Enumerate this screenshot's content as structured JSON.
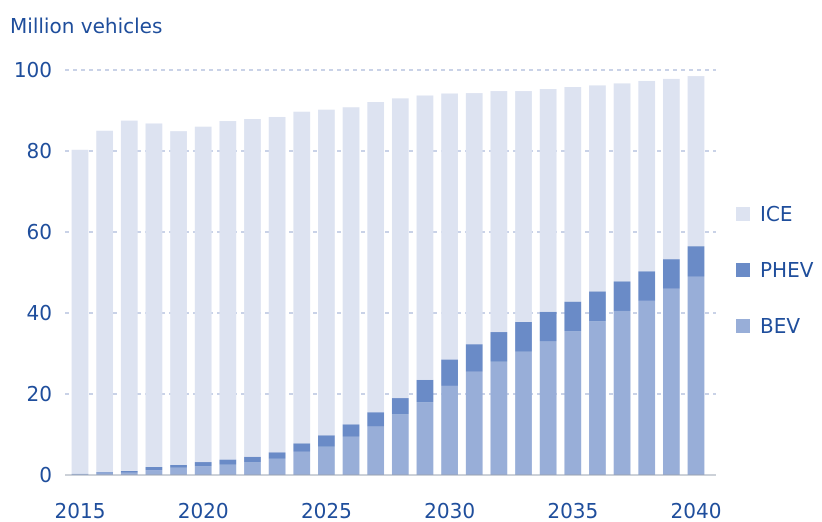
{
  "chart_data": {
    "type": "bar",
    "stacked": true,
    "ylabel": "Million vehicles",
    "xlabel": "",
    "ylim": [
      0,
      100
    ],
    "yticks": [
      0,
      20,
      40,
      60,
      80,
      100
    ],
    "xticks": [
      "2015",
      "2020",
      "2025",
      "2030",
      "2035",
      "2040"
    ],
    "grid": "horizontal dashed",
    "legend_position": "right",
    "categories": [
      "2015",
      "2016",
      "2017",
      "2018",
      "2019",
      "2020",
      "2021",
      "2022",
      "2023",
      "2024",
      "2025",
      "2026",
      "2027",
      "2028",
      "2029",
      "2030",
      "2031",
      "2032",
      "2033",
      "2034",
      "2035",
      "2036",
      "2037",
      "2038",
      "2039",
      "2040"
    ],
    "series": [
      {
        "name": "BEV",
        "color": "#98aed8",
        "values": [
          0.2,
          0.4,
          0.6,
          1.2,
          1.8,
          2.2,
          2.6,
          3.2,
          4.0,
          5.8,
          7.0,
          9.5,
          12.0,
          15.0,
          18.0,
          22.0,
          25.5,
          28.0,
          30.5,
          33.0,
          35.5,
          38.0,
          40.5,
          43.0,
          46.0,
          49.0
        ]
      },
      {
        "name": "PHEV",
        "color": "#6a8bc7",
        "values": [
          0.1,
          0.3,
          0.4,
          0.8,
          0.7,
          1.0,
          1.2,
          1.3,
          1.6,
          2.0,
          2.8,
          3.0,
          3.5,
          4.0,
          5.5,
          6.5,
          6.8,
          7.3,
          7.3,
          7.3,
          7.3,
          7.3,
          7.3,
          7.3,
          7.3,
          7.5
        ]
      },
      {
        "name": "ICE",
        "color": "#dde3f1",
        "values": [
          80.0,
          84.3,
          86.5,
          84.8,
          82.4,
          82.8,
          83.6,
          83.4,
          82.8,
          81.9,
          80.4,
          78.3,
          76.6,
          74.0,
          70.2,
          65.7,
          62.0,
          59.5,
          57.0,
          55.0,
          53.0,
          50.9,
          48.9,
          47.0,
          44.5,
          42.0
        ]
      }
    ],
    "legend": [
      "ICE",
      "PHEV",
      "BEV"
    ]
  }
}
